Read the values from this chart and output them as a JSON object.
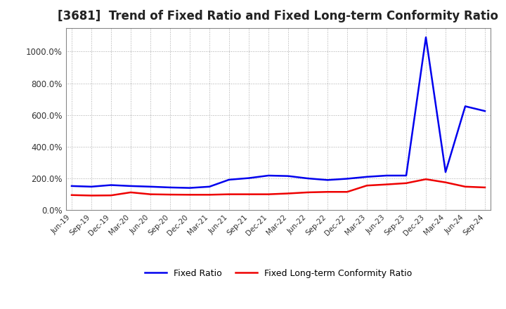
{
  "title": "[3681]  Trend of Fixed Ratio and Fixed Long-term Conformity Ratio",
  "background_color": "#ffffff",
  "plot_background_color": "#ffffff",
  "grid_color": "#aaaaaa",
  "x_labels": [
    "Jun-19",
    "Sep-19",
    "Dec-19",
    "Mar-20",
    "Jun-20",
    "Sep-20",
    "Dec-20",
    "Mar-21",
    "Jun-21",
    "Sep-21",
    "Dec-21",
    "Mar-22",
    "Jun-22",
    "Sep-22",
    "Dec-22",
    "Mar-23",
    "Jun-23",
    "Sep-23",
    "Dec-23",
    "Mar-24",
    "Jun-24",
    "Sep-24"
  ],
  "fixed_ratio": [
    152,
    148,
    158,
    152,
    148,
    143,
    140,
    148,
    192,
    202,
    218,
    215,
    200,
    190,
    198,
    210,
    218,
    218,
    1090,
    240,
    655,
    625
  ],
  "fixed_lt_ratio": [
    95,
    92,
    93,
    112,
    100,
    98,
    97,
    97,
    100,
    100,
    100,
    105,
    112,
    115,
    115,
    155,
    162,
    170,
    195,
    175,
    148,
    143
  ],
  "fixed_ratio_color": "#0000ee",
  "fixed_lt_ratio_color": "#ee0000",
  "ylim": [
    0,
    1150
  ],
  "yticks": [
    0,
    200,
    400,
    600,
    800,
    1000
  ],
  "ytick_labels": [
    "0.0%",
    "200.0%",
    "400.0%",
    "600.0%",
    "800.0%",
    "1000.0%"
  ],
  "title_fontsize": 12,
  "legend_fixed_ratio": "Fixed Ratio",
  "legend_fixed_lt_ratio": "Fixed Long-term Conformity Ratio",
  "line_width": 1.8
}
